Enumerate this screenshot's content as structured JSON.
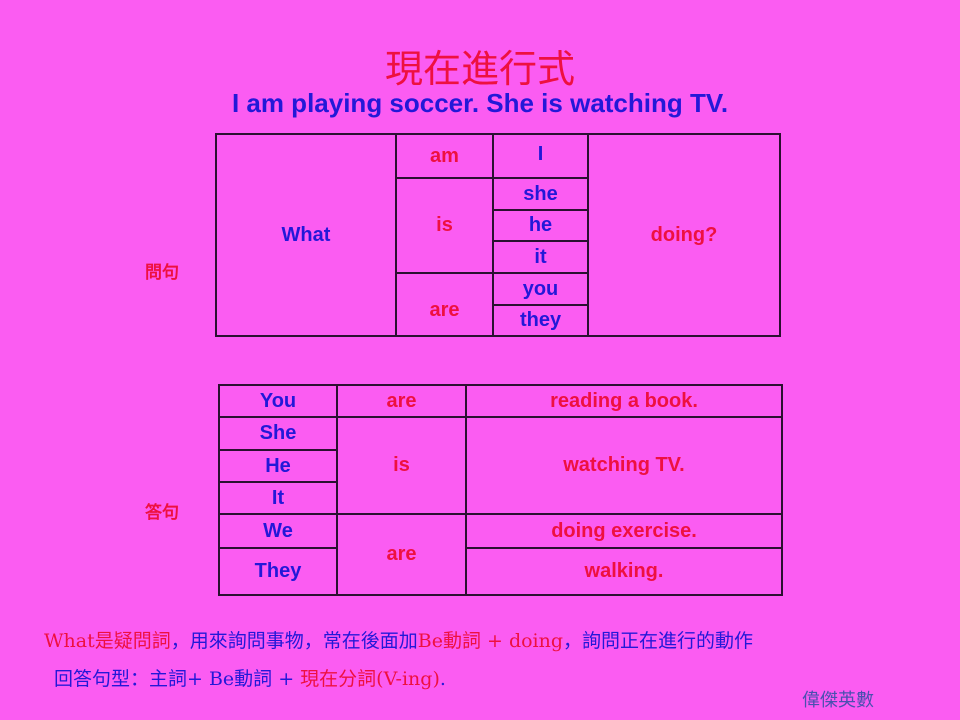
{
  "title": "現在進行式",
  "subtitle": "I am playing soccer.  She is watching TV.",
  "question": {
    "label": "問句",
    "wh": "What",
    "be": [
      "am",
      "is",
      "are"
    ],
    "subjects": [
      "I",
      "she",
      "he",
      "it",
      "you",
      "they"
    ],
    "verb": "doing?"
  },
  "answer": {
    "label": "答句",
    "subjects": [
      "You",
      "She",
      "He",
      "It",
      "We",
      "They"
    ],
    "be": [
      "are",
      "is",
      "are"
    ],
    "actions": [
      "reading a book.",
      "watching TV.",
      "doing exercise.",
      "walking."
    ]
  },
  "notes": {
    "line1": [
      {
        "t": "What是疑問詞",
        "c": "r"
      },
      {
        "t": "，用來詢問事物，常在後面加",
        "c": "b"
      },
      {
        "t": "Be動詞 + doing",
        "c": "r"
      },
      {
        "t": "，詢問正在進行的動作",
        "c": "b"
      }
    ],
    "line2": [
      {
        "t": "回答句型：主詞+ Be動詞 + ",
        "c": "b"
      },
      {
        "t": "現在分詞(V-ing)",
        "c": "r"
      },
      {
        "t": ".",
        "c": "b"
      }
    ]
  },
  "signature": "偉傑英數",
  "colors": {
    "background": "#fb5cf2",
    "blue": "#2318d8",
    "red": "#ee1040"
  }
}
